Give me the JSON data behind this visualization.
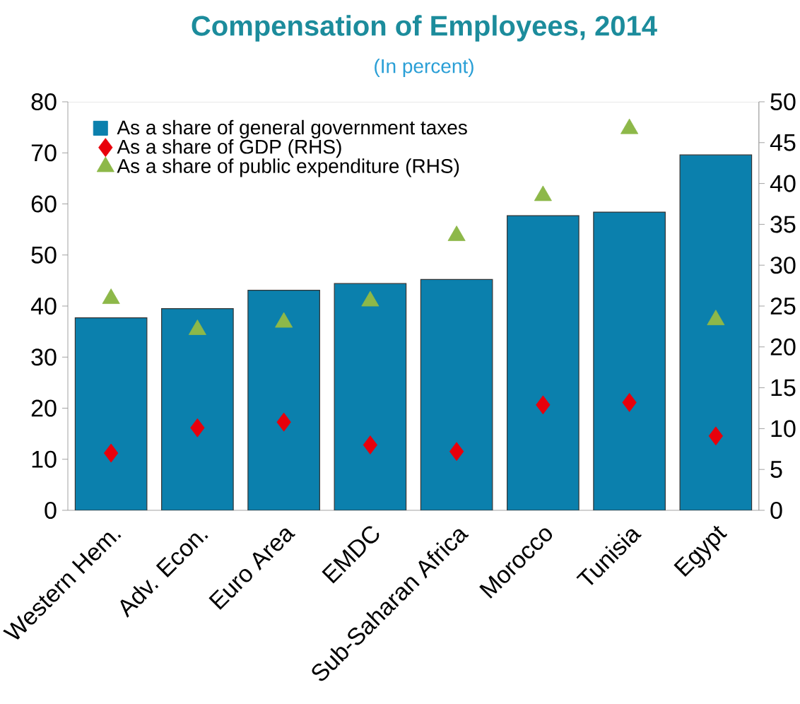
{
  "chart_data": {
    "type": "bar",
    "title": "Compensation of Employees, 2014",
    "subtitle": "(In percent)",
    "categories": [
      "Western Hem.",
      "Adv. Econ.",
      "Euro Area",
      "EMDC",
      "Sub-Saharan Africa",
      "Morocco",
      "Tunisia",
      "Egypt"
    ],
    "series": [
      {
        "name": "As a share of general government taxes",
        "color": "#0b80ad",
        "values": [
          37.7,
          39.5,
          43.1,
          44.4,
          45.2,
          57.7,
          58.4,
          69.6
        ]
      },
      {
        "name": "As a share of GDP (RHS)",
        "type": "scatter",
        "axis": "y2",
        "marker": "diamond",
        "color": "#e8000b",
        "values": [
          7.0,
          10.1,
          10.8,
          8.0,
          7.2,
          12.9,
          13.2,
          9.1
        ]
      },
      {
        "name": "As a share of public expenditure (RHS)",
        "type": "scatter",
        "axis": "y2",
        "marker": "triangle",
        "color": "#8db849",
        "values": [
          25.9,
          22.1,
          23.0,
          25.6,
          33.6,
          38.5,
          46.7,
          23.3
        ]
      }
    ],
    "ylim": [
      0,
      80
    ],
    "yticks": [
      0,
      10,
      20,
      30,
      40,
      50,
      60,
      70,
      80
    ],
    "y2lim": [
      0,
      50
    ],
    "y2ticks": [
      0,
      5,
      10,
      15,
      20,
      25,
      30,
      35,
      40,
      45,
      50
    ],
    "legend": "top left",
    "grid": false
  }
}
